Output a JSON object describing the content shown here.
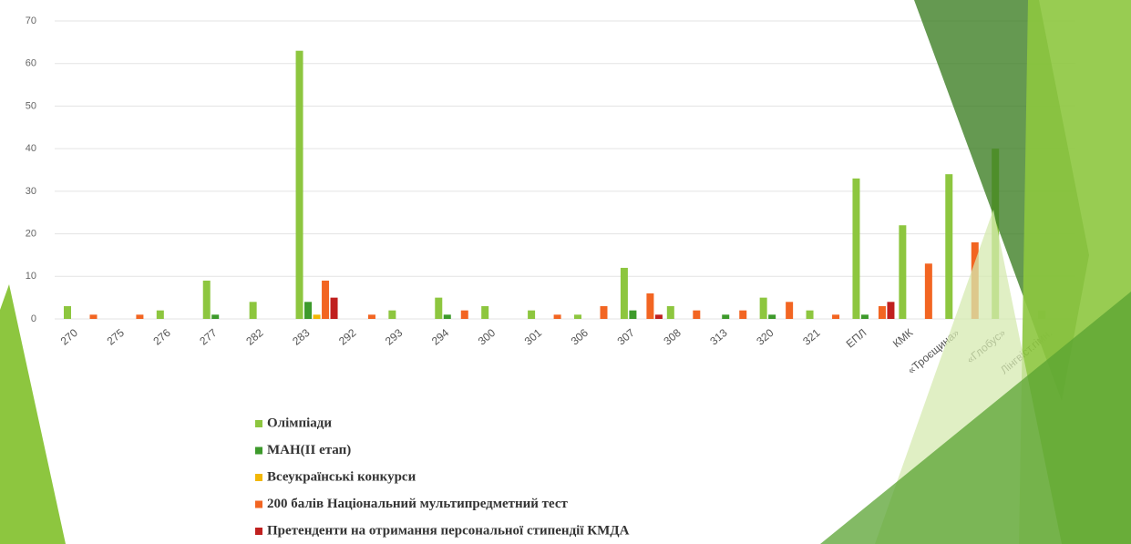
{
  "chart_data": {
    "type": "bar",
    "categories": [
      "270",
      "275",
      "276",
      "277",
      "282",
      "283",
      "292",
      "293",
      "294",
      "300",
      "301",
      "306",
      "307",
      "308",
      "313",
      "320",
      "321",
      "ЕПЛ",
      "КМК",
      "«Троєщина»",
      "«Глобус»",
      "Лінгвіст.гімн."
    ],
    "series": [
      {
        "name": "Олімпіади",
        "color": "#8dc63f",
        "values": [
          3,
          0,
          2,
          9,
          4,
          63,
          0,
          2,
          5,
          3,
          2,
          1,
          12,
          3,
          0,
          5,
          2,
          33,
          22,
          34,
          40,
          2
        ]
      },
      {
        "name": "МАН(ІІ етап)",
        "color": "#3d9a2b",
        "values": [
          0,
          0,
          0,
          1,
          0,
          4,
          0,
          0,
          1,
          0,
          0,
          0,
          2,
          0,
          1,
          1,
          0,
          1,
          0,
          0,
          0,
          0
        ]
      },
      {
        "name": "Всеукраїнські конкурси",
        "color": "#f2b705",
        "values": [
          0,
          0,
          0,
          0,
          0,
          1,
          0,
          0,
          0,
          0,
          0,
          0,
          0,
          0,
          0,
          0,
          0,
          0,
          0,
          0,
          0,
          0
        ]
      },
      {
        "name": " 200 балів Національний мультипредметний тест",
        "color": "#f26522",
        "values": [
          1,
          1,
          0,
          0,
          0,
          9,
          1,
          0,
          2,
          0,
          1,
          3,
          6,
          2,
          2,
          4,
          1,
          3,
          13,
          18,
          0,
          0
        ]
      },
      {
        "name": "Претенденти на отримання персональної стипендії КМДА",
        "color": "#c0201f",
        "values": [
          0,
          0,
          0,
          0,
          0,
          5,
          0,
          0,
          0,
          0,
          0,
          0,
          1,
          0,
          0,
          0,
          0,
          4,
          0,
          0,
          0,
          0
        ]
      }
    ],
    "ylim": [
      0,
      70
    ],
    "yticks": [
      0,
      10,
      20,
      30,
      40,
      50,
      60,
      70
    ],
    "grid": true
  }
}
